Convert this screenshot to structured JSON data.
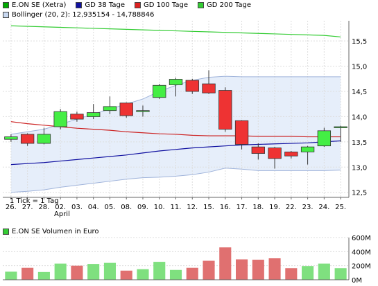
{
  "legend": {
    "items": [
      {
        "label": "E.ON SE (Xetra)",
        "color": "#00aa00"
      },
      {
        "label": "GD 38 Tage",
        "color": "#1010a0"
      },
      {
        "label": "GD 100 Tage",
        "color": "#dd2222"
      },
      {
        "label": "GD 200 Tage",
        "color": "#33cc33"
      }
    ],
    "bollinger": {
      "label": "Bollinger (20, 2): 12,935154 - 14,788846",
      "color": "#c8d8f0"
    },
    "volume": {
      "label": "E.ON SE Volumen in Euro",
      "color": "#33cc33"
    }
  },
  "tick_note": "1 Tick = 1 Tag",
  "month_label": "April",
  "chart_data": [
    {
      "type": "candlestick",
      "categories": [
        "26.",
        "27.",
        "28.",
        "02.",
        "03.",
        "04.",
        "05.",
        "08.",
        "09.",
        "10.",
        "11.",
        "12.",
        "15.",
        "16.",
        "17.",
        "18.",
        "19.",
        "22.",
        "23.",
        "24.",
        "25."
      ],
      "ohlc": [
        [
          13.55,
          13.65,
          13.5,
          13.6
        ],
        [
          13.65,
          13.67,
          13.42,
          13.47
        ],
        [
          13.47,
          13.78,
          13.45,
          13.65
        ],
        [
          13.8,
          14.15,
          13.75,
          14.1
        ],
        [
          14.05,
          14.1,
          13.9,
          13.95
        ],
        [
          14.0,
          14.25,
          13.95,
          14.08
        ],
        [
          14.12,
          14.4,
          14.05,
          14.2
        ],
        [
          14.27,
          14.28,
          13.98,
          14.02
        ],
        [
          14.1,
          14.22,
          14.0,
          14.12
        ],
        [
          14.38,
          14.65,
          14.35,
          14.62
        ],
        [
          14.63,
          14.77,
          14.4,
          14.74
        ],
        [
          14.72,
          14.75,
          14.45,
          14.5
        ],
        [
          14.65,
          14.92,
          14.45,
          14.47
        ],
        [
          14.52,
          14.58,
          13.7,
          13.75
        ],
        [
          13.92,
          13.93,
          13.35,
          13.45
        ],
        [
          13.4,
          13.47,
          13.15,
          13.27
        ],
        [
          13.38,
          13.4,
          12.97,
          13.17
        ],
        [
          13.3,
          13.32,
          13.17,
          13.22
        ],
        [
          13.3,
          13.42,
          13.05,
          13.4
        ],
        [
          13.42,
          13.78,
          13.4,
          13.72
        ],
        [
          13.8,
          13.82,
          13.5,
          13.8
        ]
      ],
      "sma38": [
        13.05,
        13.07,
        13.09,
        13.12,
        13.15,
        13.18,
        13.21,
        13.24,
        13.28,
        13.32,
        13.35,
        13.38,
        13.4,
        13.42,
        13.44,
        13.45,
        13.46,
        13.47,
        13.48,
        13.5,
        13.52
      ],
      "sma100": [
        13.9,
        13.86,
        13.83,
        13.8,
        13.77,
        13.75,
        13.73,
        13.7,
        13.68,
        13.66,
        13.65,
        13.63,
        13.62,
        13.62,
        13.62,
        13.61,
        13.61,
        13.61,
        13.6,
        13.6,
        13.6
      ],
      "sma200": [
        15.8,
        15.79,
        15.78,
        15.77,
        15.76,
        15.75,
        15.74,
        15.73,
        15.72,
        15.71,
        15.7,
        15.69,
        15.68,
        15.67,
        15.66,
        15.65,
        15.64,
        15.63,
        15.62,
        15.61,
        15.58
      ],
      "bollinger_upper": [
        13.65,
        13.7,
        13.75,
        13.85,
        13.95,
        14.05,
        14.15,
        14.25,
        14.35,
        14.5,
        14.62,
        14.72,
        14.78,
        14.8,
        14.79,
        14.79,
        14.79,
        14.79,
        14.79,
        14.79,
        14.79
      ],
      "bollinger_lower": [
        12.5,
        12.52,
        12.55,
        12.6,
        12.64,
        12.68,
        12.72,
        12.76,
        12.79,
        12.8,
        12.82,
        12.85,
        12.9,
        12.98,
        12.96,
        12.93,
        12.93,
        12.93,
        12.93,
        12.93,
        12.94
      ],
      "ylim": [
        12.4,
        15.9
      ],
      "yticks": [
        "12,5",
        "13,0",
        "13,5",
        "14,0",
        "14,5",
        "15,0",
        "15,5"
      ],
      "ytick_values": [
        12.5,
        13.0,
        13.5,
        14.0,
        14.5,
        15.0,
        15.5
      ],
      "grid": true
    },
    {
      "type": "bar",
      "categories": [
        "26.",
        "27.",
        "28.",
        "02.",
        "03.",
        "04.",
        "05.",
        "08.",
        "09.",
        "10.",
        "11.",
        "12.",
        "15.",
        "16.",
        "17.",
        "18.",
        "19.",
        "22.",
        "23.",
        "24.",
        "25."
      ],
      "values": [
        115,
        170,
        110,
        230,
        200,
        225,
        240,
        130,
        150,
        255,
        140,
        170,
        270,
        460,
        290,
        285,
        305,
        165,
        195,
        230,
        165
      ],
      "ylim": [
        0,
        600
      ],
      "yticks": [
        "0M",
        "200M",
        "400M",
        "600M"
      ],
      "ytick_values": [
        0,
        200,
        400,
        600
      ],
      "grid": true
    }
  ]
}
